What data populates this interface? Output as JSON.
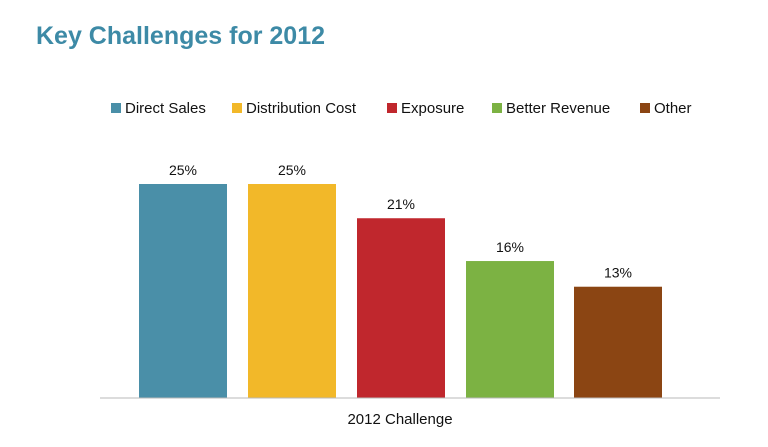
{
  "chart_data": {
    "type": "bar",
    "title": "Key Challenges for 2012",
    "xlabel": "2012 Challenge",
    "ylabel": "",
    "ylim": [
      0,
      25
    ],
    "grid": false,
    "legend_position": "top",
    "value_suffix": "%",
    "series": [
      {
        "name": "Direct Sales",
        "value": 25,
        "label": "25%",
        "color": "#4a8fa8"
      },
      {
        "name": "Distribution Cost",
        "value": 25,
        "label": "25%",
        "color": "#f2b829"
      },
      {
        "name": "Exposure",
        "value": 21,
        "label": "21%",
        "color": "#c0272d"
      },
      {
        "name": "Better Revenue",
        "value": 16,
        "label": "16%",
        "color": "#7cb243"
      },
      {
        "name": "Other",
        "value": 13,
        "label": "13%",
        "color": "#8b4513"
      }
    ]
  }
}
